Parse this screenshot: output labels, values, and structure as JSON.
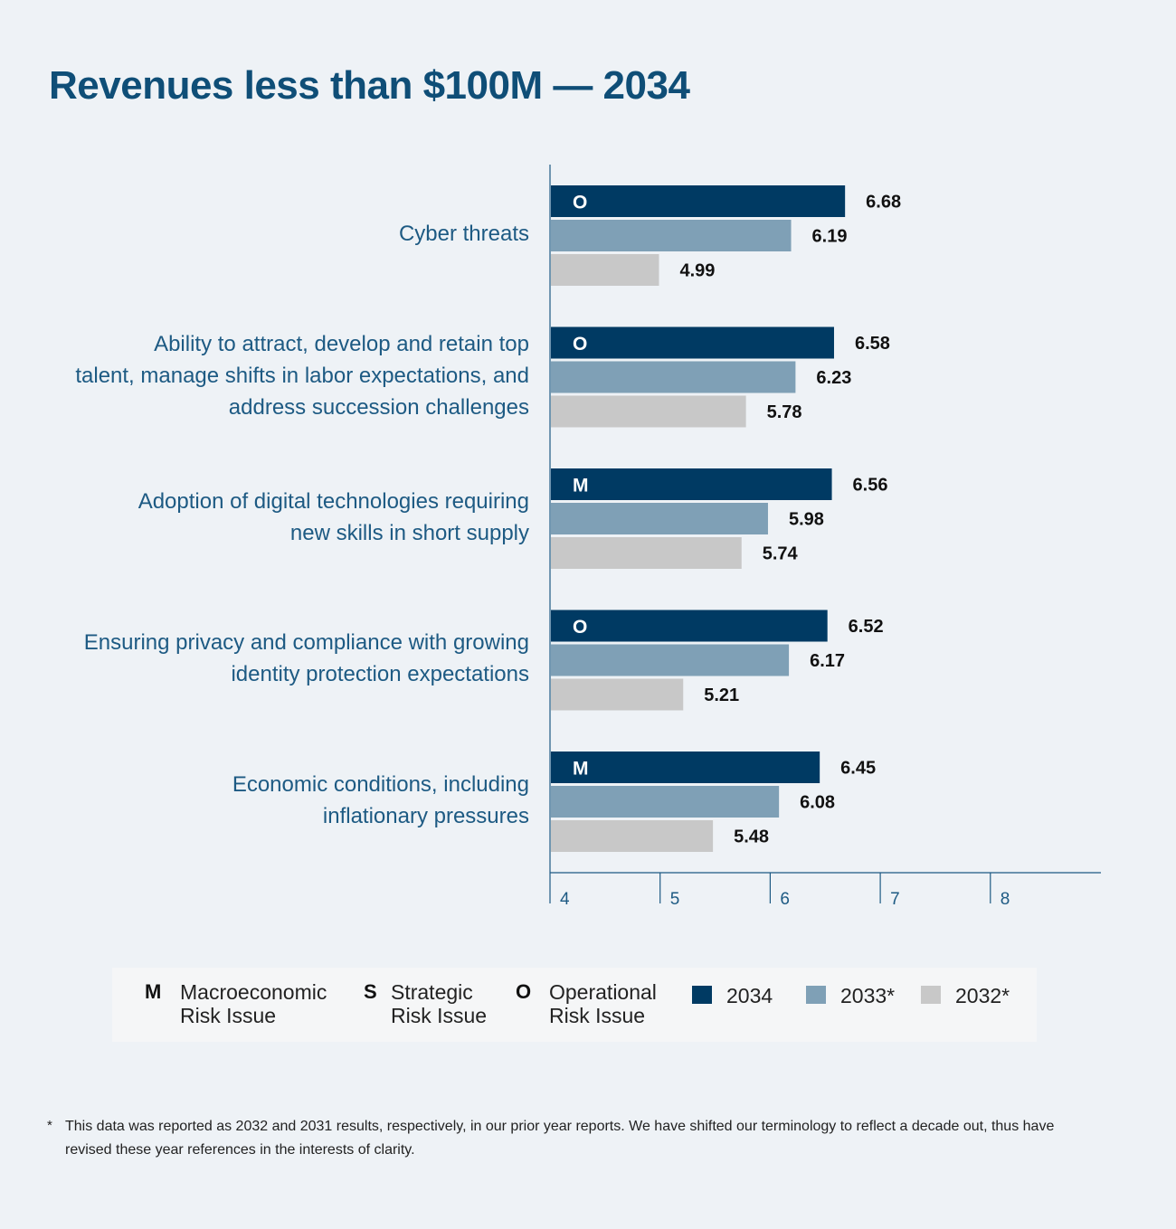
{
  "title": "Revenues less than $100M — 2034",
  "chart_data": {
    "type": "bar",
    "orientation": "horizontal",
    "title": "Revenues less than $100M — 2034",
    "categories": [
      "Cyber threats",
      "Ability to attract, develop and retain top talent, manage shifts in labor expectations, and address succession challenges",
      "Adoption of digital technologies requiring new skills in short supply",
      "Ensuring privacy and compliance with growing identity protection expectations",
      "Economic conditions, including inflationary pressures"
    ],
    "category_lines": [
      [
        "Cyber threats"
      ],
      [
        "Ability to attract, develop and retain top",
        "talent, manage shifts in labor expectations, and",
        "address succession challenges"
      ],
      [
        "Adoption of digital technologies requiring",
        "new skills in short supply"
      ],
      [
        "Ensuring privacy and compliance with growing",
        "identity protection expectations"
      ],
      [
        "Economic conditions, including",
        "inflationary pressures"
      ]
    ],
    "risk_type": [
      "O",
      "O",
      "M",
      "O",
      "M"
    ],
    "series": [
      {
        "name": "2034",
        "color": "#003a63",
        "values": [
          6.68,
          6.58,
          6.56,
          6.52,
          6.45
        ]
      },
      {
        "name": "2033*",
        "color": "#7fa0b6",
        "values": [
          6.19,
          6.23,
          5.98,
          6.17,
          6.08
        ]
      },
      {
        "name": "2032*",
        "color": "#c8c8c8",
        "values": [
          4.99,
          5.78,
          5.74,
          5.21,
          5.48
        ]
      }
    ],
    "xlim": [
      4,
      9
    ],
    "xticks": [
      4,
      5,
      6,
      7,
      8
    ],
    "grid": false,
    "legend_placement": "bottom"
  },
  "legend": {
    "risk_types": [
      {
        "letter": "M",
        "line1": "Macroeconomic",
        "line2": "Risk Issue"
      },
      {
        "letter": "S",
        "line1": "Strategic",
        "line2": "Risk Issue"
      },
      {
        "letter": "O",
        "line1": "Operational",
        "line2": "Risk Issue"
      }
    ],
    "years": [
      "2034",
      "2033*",
      "2032*"
    ]
  },
  "footnote": {
    "mark": "*",
    "text": "This data was reported as 2032 and 2031 results, respectively, in our prior year reports. We have shifted our terminology to reflect a decade out, thus have revised these year references in the interests of clarity."
  }
}
